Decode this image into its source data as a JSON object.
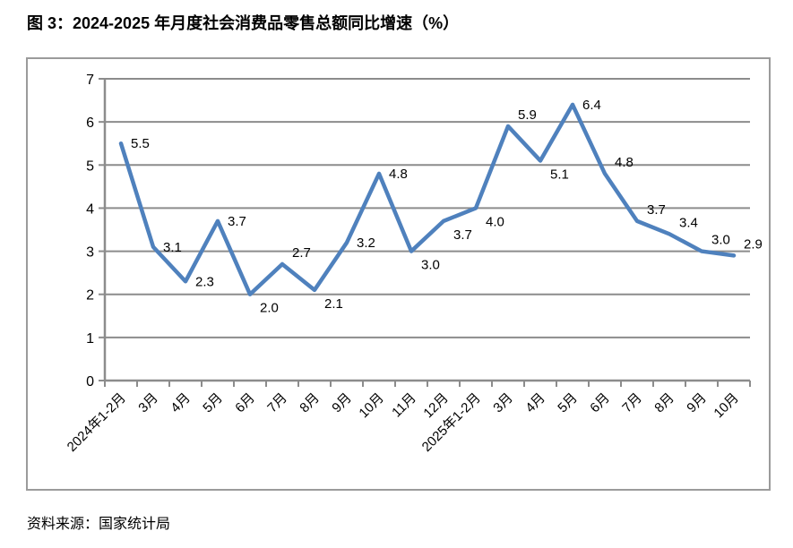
{
  "page": {
    "title": "图 3：2024-2025 年月度社会消费品零售总额同比增速（%）",
    "source": "资料来源：国家统计局"
  },
  "chart_data": {
    "type": "line",
    "title": "图 3：2024-2025 年月度社会消费品零售总额同比增速（%）",
    "categories": [
      "2024年1-2月",
      "3月",
      "4月",
      "5月",
      "6月",
      "7月",
      "8月",
      "9月",
      "10月",
      "11月",
      "12月",
      "2025年1-2月",
      "3月",
      "4月",
      "5月",
      "6月",
      "7月",
      "8月",
      "9月",
      "10月"
    ],
    "values": [
      5.5,
      3.1,
      2.3,
      3.7,
      2.0,
      2.7,
      2.1,
      3.2,
      4.8,
      3.0,
      3.7,
      4.0,
      5.9,
      5.1,
      6.4,
      4.8,
      3.7,
      3.4,
      3.0,
      2.9
    ],
    "data_labels": [
      "5.5",
      "3.1",
      "2.3",
      "3.7",
      "2.0",
      "2.7",
      "2.1",
      "3.2",
      "4.8",
      "3.0",
      "3.7",
      "4.0",
      "5.9",
      "5.1",
      "6.4",
      "4.8",
      "3.7",
      "3.4",
      "3.0",
      "2.9"
    ],
    "label_positions": [
      "r",
      "r",
      "r",
      "r",
      "br",
      "ar",
      "br",
      "r",
      "r",
      "br",
      "br",
      "br",
      "ar",
      "br",
      "r",
      "ar",
      "ar",
      "ar",
      "ar",
      "ar"
    ],
    "xlabel": "",
    "ylabel": "",
    "ylim": [
      0,
      7
    ],
    "yticks": [
      "0",
      "1",
      "2",
      "3",
      "4",
      "5",
      "6",
      "7"
    ],
    "grid": true,
    "legend": false,
    "x_label_rotation": -45,
    "colors": {
      "line": "#4F81BD",
      "grid": "#8c8c8c",
      "axis": "#8c8c8c",
      "frame_border": "#9b9b9b",
      "text": "#000000"
    }
  }
}
